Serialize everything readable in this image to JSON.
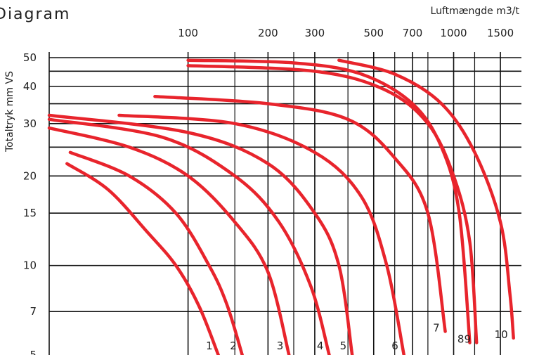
{
  "chart_data": {
    "type": "line",
    "title": "Diagram",
    "xlabel": "Luftmængde m3/t",
    "ylabel": "Totaltryk mm VS",
    "x_scale": "log",
    "y_scale": "log",
    "xlim": [
      30,
      1800
    ],
    "ylim": [
      5,
      50
    ],
    "x_ticks": [
      100,
      200,
      300,
      500,
      700,
      1000,
      1500
    ],
    "y_ticks": [
      5,
      7,
      10,
      15,
      20,
      30,
      40,
      50
    ],
    "grid": true,
    "line_color": "#e8242c",
    "series": [
      {
        "name": "1",
        "points": [
          [
            35,
            22
          ],
          [
            50,
            18
          ],
          [
            70,
            13
          ],
          [
            90,
            10
          ],
          [
            110,
            7.3
          ],
          [
            130,
            5
          ]
        ]
      },
      {
        "name": "2",
        "points": [
          [
            36,
            24
          ],
          [
            60,
            20
          ],
          [
            90,
            15
          ],
          [
            120,
            10
          ],
          [
            140,
            7.4
          ],
          [
            160,
            5
          ]
        ]
      },
      {
        "name": "3",
        "points": [
          [
            30,
            29
          ],
          [
            60,
            25
          ],
          [
            100,
            20
          ],
          [
            150,
            14
          ],
          [
            200,
            9.5
          ],
          [
            240,
            5
          ]
        ]
      },
      {
        "name": "4",
        "points": [
          [
            30,
            31
          ],
          [
            80,
            27
          ],
          [
            150,
            20
          ],
          [
            220,
            14
          ],
          [
            290,
            8.5
          ],
          [
            340,
            5
          ]
        ]
      },
      {
        "name": "5",
        "points": [
          [
            30,
            32
          ],
          [
            100,
            28
          ],
          [
            200,
            22
          ],
          [
            300,
            15
          ],
          [
            370,
            10
          ],
          [
            415,
            5
          ]
        ]
      },
      {
        "name": "6",
        "points": [
          [
            55,
            32
          ],
          [
            150,
            30
          ],
          [
            300,
            24
          ],
          [
            450,
            17
          ],
          [
            560,
            10
          ],
          [
            650,
            5
          ]
        ]
      },
      {
        "name": "7",
        "points": [
          [
            75,
            37
          ],
          [
            200,
            35
          ],
          [
            400,
            31
          ],
          [
            600,
            23
          ],
          [
            800,
            15
          ],
          [
            930,
            6
          ]
        ]
      },
      {
        "name": "8",
        "points": [
          [
            100,
            49
          ],
          [
            250,
            48
          ],
          [
            450,
            44
          ],
          [
            700,
            35
          ],
          [
            900,
            25
          ],
          [
            1050,
            15
          ],
          [
            1150,
            5.5
          ]
        ]
      },
      {
        "name": "9",
        "points": [
          [
            100,
            47
          ],
          [
            300,
            45
          ],
          [
            550,
            39
          ],
          [
            800,
            30
          ],
          [
            1000,
            20
          ],
          [
            1150,
            12
          ],
          [
            1220,
            5.5
          ]
        ]
      },
      {
        "name": "10",
        "points": [
          [
            370,
            49
          ],
          [
            600,
            44
          ],
          [
            900,
            35
          ],
          [
            1200,
            24
          ],
          [
            1500,
            14
          ],
          [
            1630,
            8
          ],
          [
            1680,
            5.7
          ]
        ]
      }
    ]
  }
}
